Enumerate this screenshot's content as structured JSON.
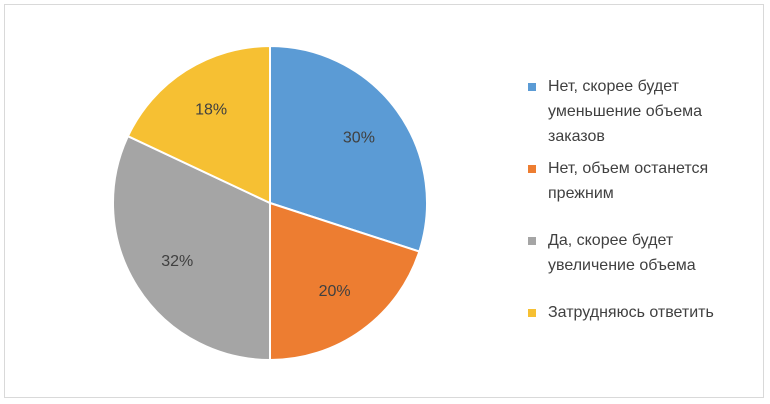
{
  "chart_data": {
    "type": "pie",
    "categories": [
      "Нет, скорее будет уменьшение объема заказов",
      "Нет, объем останется прежним",
      "Да, скорее будет увеличение объема",
      "Затрудняюсь ответить"
    ],
    "values": [
      30,
      20,
      32,
      18
    ],
    "value_labels": [
      "30%",
      "20%",
      "32%",
      "18%"
    ],
    "colors": [
      "#5b9bd5",
      "#ed7d31",
      "#a5a5a5",
      "#f6c033"
    ],
    "legend": "right"
  }
}
